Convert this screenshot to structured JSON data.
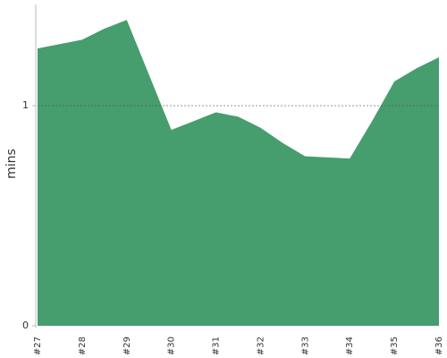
{
  "chart_data": {
    "type": "area",
    "y_label": "mins",
    "categories": [
      "#27",
      null,
      "#28",
      null,
      "#29",
      null,
      "#30",
      null,
      "#31",
      null,
      "#32",
      null,
      "#33",
      null,
      "#34",
      null,
      "#35",
      null,
      "#36"
    ],
    "values": [
      1.26,
      1.28,
      1.3,
      1.35,
      1.39,
      1.14,
      0.89,
      0.93,
      0.97,
      0.95,
      0.9,
      0.83,
      0.77,
      0.765,
      0.76,
      0.93,
      1.11,
      1.17,
      1.22
    ],
    "color": "#469d6e",
    "ylim": [
      0,
      1.46
    ],
    "yticks": [
      0,
      1
    ],
    "grid": true
  }
}
